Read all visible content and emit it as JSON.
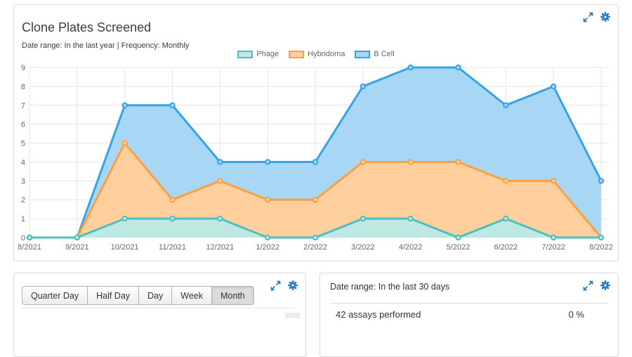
{
  "accent": "#2779bd",
  "main_card": {
    "title": "Clone Plates Screened",
    "subtitle": "Date range: In the last year | Frequency: Monthly"
  },
  "chart_data": {
    "type": "area",
    "title": "Clone Plates Screened",
    "xlabel": "",
    "ylabel": "",
    "categories": [
      "8/2021",
      "9/2021",
      "10/2021",
      "11/2021",
      "12/2021",
      "1/2022",
      "2/2022",
      "3/2022",
      "4/2022",
      "5/2022",
      "6/2022",
      "7/2022",
      "8/2022"
    ],
    "series": [
      {
        "name": "Phage",
        "color": "#4BC0C0",
        "fill": "#BFE8E3",
        "values": [
          0,
          0,
          1,
          1,
          1,
          0,
          0,
          1,
          1,
          0,
          1,
          0,
          0
        ]
      },
      {
        "name": "Hybridoma",
        "color": "#FF9F40",
        "fill": "#FFCF9E",
        "values": [
          0,
          0,
          5,
          2,
          3,
          2,
          2,
          4,
          4,
          4,
          3,
          3,
          0
        ]
      },
      {
        "name": "B Cell",
        "color": "#36A2EB",
        "fill": "#A8D7F5",
        "values": [
          0,
          0,
          7,
          7,
          4,
          4,
          4,
          8,
          9,
          9,
          7,
          8,
          3
        ]
      }
    ],
    "ylim": [
      0,
      9
    ],
    "y_ticks": [
      0,
      1,
      2,
      3,
      4,
      5,
      6,
      7,
      8,
      9
    ],
    "grid": true,
    "legend_position": "top",
    "grid_color": "#e6e6e6",
    "axis_text_color": "#666"
  },
  "left_card": {
    "buttons": [
      {
        "label": "Quarter Day",
        "active": false
      },
      {
        "label": "Half Day",
        "active": false
      },
      {
        "label": "Day",
        "active": false
      },
      {
        "label": "Week",
        "active": false
      },
      {
        "label": "Month",
        "active": true
      }
    ]
  },
  "right_card": {
    "date_range": "Date range: In the last 30 days",
    "rows": [
      {
        "label": "42 assays performed",
        "value": "0 %"
      }
    ]
  }
}
